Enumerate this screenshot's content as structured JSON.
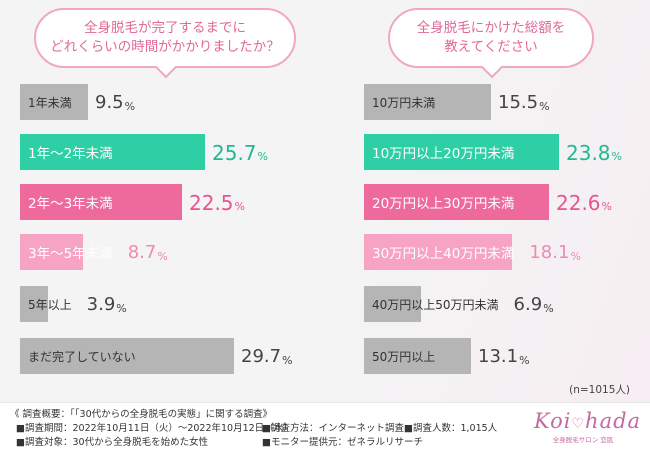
{
  "questions": {
    "left": {
      "line1": "全身脱毛が完了するまでに",
      "line2": "どれくらいの時間がかかりましたか？"
    },
    "right": {
      "line1": "全身脱毛にかけた総額を",
      "line2": "教えてください"
    }
  },
  "chart_data": [
    {
      "type": "bar",
      "orientation": "horizontal",
      "categories": [
        "1年未満",
        "1年〜2年未満",
        "2年〜3年未満",
        "3年〜5年未満",
        "5年以上",
        "まだ完了していない"
      ],
      "values": [
        9.5,
        25.7,
        22.5,
        8.7,
        3.9,
        29.7
      ],
      "unit": "%",
      "colors": [
        "#b5b5b5",
        "#2ecfa4",
        "#ee6a9d",
        "#f7a3c4",
        "#b5b5b5",
        "#b5b5b5"
      ],
      "grid": false,
      "legend": "none"
    },
    {
      "type": "bar",
      "orientation": "horizontal",
      "categories": [
        "10万円未満",
        "10万円以上20万円未満",
        "20万円以上30万円未満",
        "30万円以上40万円未満",
        "40万円以上50万円未満",
        "50万円以上"
      ],
      "values": [
        15.5,
        23.8,
        22.6,
        18.1,
        6.9,
        13.1
      ],
      "unit": "%",
      "colors": [
        "#b5b5b5",
        "#2ecfa4",
        "#ee6a9d",
        "#f7a3c4",
        "#b5b5b5",
        "#b5b5b5"
      ],
      "grid": false,
      "legend": "none"
    }
  ],
  "sample_note": "(n=1015人)",
  "footer": {
    "title": "《 調査概要：「「30代からの全身脱毛の実態」に関する調査》",
    "period": "■調査期間：2022年10月11日（火）〜2022年10月12日（水）",
    "target": "■調査対象：30代から全身脱毛を始めた女性",
    "method": "■調査方法：インターネット調査",
    "count": "■調査人数：1,015人",
    "provider": "■モニター提供元：ゼネラルリサーチ"
  },
  "logo": {
    "left": "Koi",
    "right": "hada",
    "sub": "全身脱毛サロン 恋肌"
  }
}
